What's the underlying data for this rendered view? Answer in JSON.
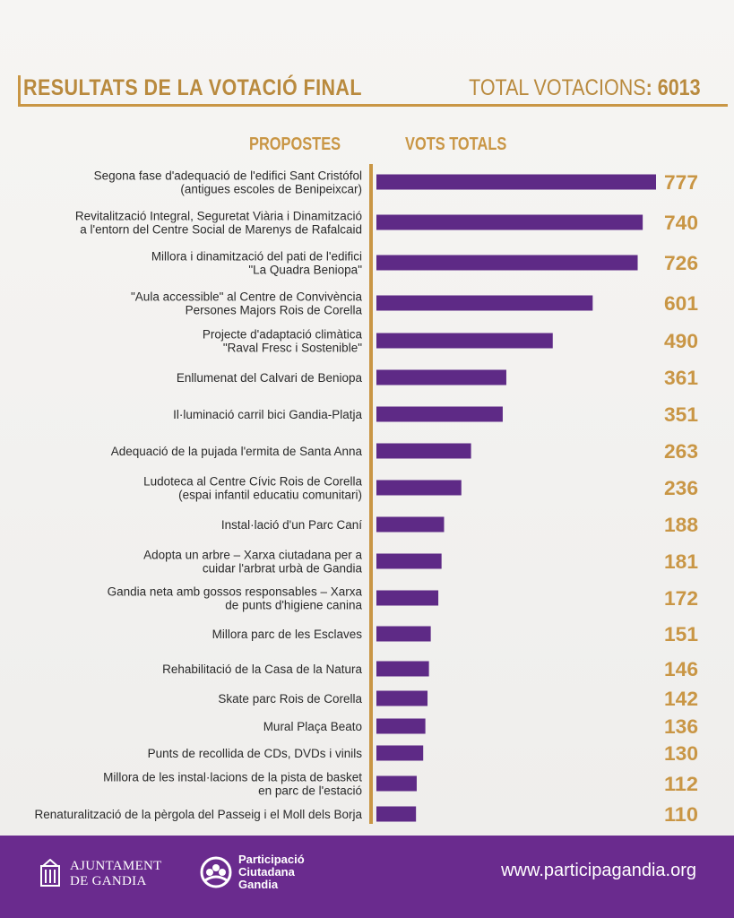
{
  "header": {
    "title": "RESULTATS DE LA VOTACIÓ FINAL",
    "total_label": "TOTAL VOTACIONS",
    "total_sep": ":",
    "total_value": "6013"
  },
  "columns": {
    "proposals": "PROPOSTES",
    "votes": "VOTS TOTALS"
  },
  "colors": {
    "bar": "#5e2a86",
    "accent": "#c99645",
    "footer": "#6a2b8e"
  },
  "chart_data": {
    "type": "bar",
    "orientation": "horizontal",
    "title": "RESULTATS DE LA VOTACIÓ FINAL",
    "xlabel": "VOTS TOTALS",
    "ylabel": "PROPOSTES",
    "categories": [
      [
        "Segona fase d'adequació de l'edifici Sant Cristófol",
        "(antigues escoles de Benipeixcar)"
      ],
      [
        "Revitalització Integral, Seguretat Viària i Dinamització",
        "a l'entorn del Centre Social de Marenys de Rafalcaid"
      ],
      [
        "Millora i dinamització del pati de l'edifici",
        "\"La Quadra Beniopa\""
      ],
      [
        "\"Aula accessible\" al Centre de Convivència",
        "Persones Majors Rois de Corella"
      ],
      [
        "Projecte d'adaptació climàtica",
        "\"Raval Fresc i Sostenible\""
      ],
      [
        "Enllumenat del Calvari de Beniopa"
      ],
      [
        "Il·luminació carril bici Gandia-Platja"
      ],
      [
        "Adequació de la pujada l'ermita de Santa Anna"
      ],
      [
        "Ludoteca al Centre Cívic Rois de Corella",
        "(espai infantil educatiu comunitari)"
      ],
      [
        "Instal·lació d'un Parc Caní"
      ],
      [
        "Adopta un arbre – Xarxa ciutadana per a",
        "cuidar l'arbrat urbà de Gandia"
      ],
      [
        "Gandia neta amb gossos responsables – Xarxa",
        "de punts d'higiene canina"
      ],
      [
        "Millora parc de les Esclaves"
      ],
      [
        "Rehabilitació de la Casa de la Natura"
      ],
      [
        "Skate parc Rois de Corella"
      ],
      [
        "Mural Plaça Beato"
      ],
      [
        "Punts de recollida de CDs, DVDs i vinils"
      ],
      [
        "Millora de les instal·lacions de la pista de basket",
        "en parc de l'estació"
      ],
      [
        "Renaturalització de la pèrgola del Passeig i el Moll dels Borja"
      ]
    ],
    "values": [
      777,
      740,
      726,
      601,
      490,
      361,
      351,
      263,
      236,
      188,
      181,
      172,
      151,
      146,
      142,
      136,
      130,
      112,
      110
    ],
    "xlim": [
      0,
      800
    ],
    "grid": false,
    "legend": "none"
  },
  "footer": {
    "org_line1": "AJUNTAMENT",
    "org_line2": "DE GANDIA",
    "part_line1": "Participació",
    "part_line2": "Ciutadana",
    "part_line3": "Gandia",
    "website": "www.participagandia.org"
  }
}
